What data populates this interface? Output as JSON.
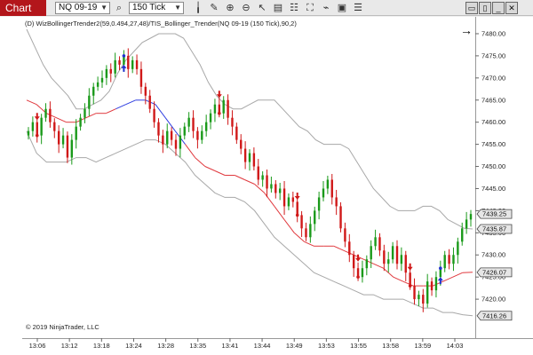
{
  "toolbar": {
    "chart_tab": "Chart",
    "instrument": "NQ 09-19",
    "interval": "150 Tick",
    "icons": [
      "search-icon",
      "bar-type-icon",
      "pencil-icon",
      "zoom-in-icon",
      "zoom-out-icon",
      "pointer-icon",
      "data-box-icon",
      "template-icon",
      "properties-icon",
      "strategy-icon",
      "indicator-icon",
      "list-icon"
    ],
    "window_buttons": [
      "maximize-icon",
      "restore-icon",
      "minimize-icon",
      "close-icon"
    ]
  },
  "indicator_label": "(D) WizBollingerTrender2(59,0.494,27,48)/TIS_Bollinger_Trender(NQ 09-19 (150 Tick),90,2)",
  "copyright": "© 2019 NinjaTrader, LLC",
  "colors": {
    "upper_band": "#a8a8a8",
    "lower_band": "#a8a8a8",
    "trend_red": "#e0393e",
    "trend_blue": "#2f3fe0",
    "up_candle": "#1a9a1a",
    "down_candle": "#d01818",
    "signal_down": "#d01818",
    "signal_up": "#2030d0"
  },
  "chart_data": {
    "type": "candlestick",
    "title": "",
    "xlabel": "",
    "ylabel": "",
    "ylim": [
      7413,
      7482
    ],
    "y_ticks": [
      7420,
      7425,
      7430,
      7435,
      7440,
      7445,
      7450,
      7455,
      7460,
      7465,
      7470,
      7475,
      7480
    ],
    "y_tick_labels": [
      "7420.00",
      "7425.00",
      "7430.00",
      "7435.00",
      "7440.00",
      "7445.00",
      "7450.00",
      "7455.00",
      "7460.00",
      "7465.00",
      "7470.00",
      "7475.00",
      "7480.00"
    ],
    "x_tick_labels": [
      "13:06",
      "13:12",
      "13:18",
      "13:24",
      "13:28",
      "13:35",
      "13:41",
      "13:44",
      "13:49",
      "13:53",
      "13:55",
      "13:58",
      "13:59",
      "14:03"
    ],
    "price_tags": [
      {
        "label": "7439.25",
        "value": 7439.25
      },
      {
        "label": "7435.87",
        "value": 7435.87
      },
      {
        "label": "7426.07",
        "value": 7426.07
      },
      {
        "label": "7416.26",
        "value": 7416.26
      }
    ],
    "close": [
      7458,
      7460,
      7457,
      7461,
      7463,
      7460,
      7458,
      7455,
      7457,
      7452,
      7456,
      7459,
      7461,
      7463,
      7466,
      7468,
      7469,
      7470,
      7472,
      7471,
      7474,
      7473,
      7475,
      7472,
      7474,
      7472,
      7468,
      7466,
      7463,
      7460,
      7457,
      7455,
      7458,
      7456,
      7454,
      7457,
      7459,
      7461,
      7458,
      7456,
      7458,
      7460,
      7462,
      7464,
      7462,
      7465,
      7461,
      7459,
      7456,
      7454,
      7451,
      7453,
      7450,
      7447,
      7448,
      7445,
      7446,
      7444,
      7445,
      7441,
      7443,
      7442,
      7439,
      7436,
      7434,
      7437,
      7440,
      7443,
      7445,
      7447,
      7443,
      7441,
      7436,
      7433,
      7430,
      7427,
      7425,
      7427,
      7429,
      7432,
      7434,
      7431,
      7428,
      7429,
      7432,
      7428,
      7430,
      7426,
      7423,
      7420,
      7421,
      7419,
      7424,
      7422,
      7425,
      7427,
      7430,
      7428,
      7430,
      7433,
      7436,
      7438,
      7439.25
    ],
    "upper_band": [
      7481,
      7477,
      7473,
      7470,
      7468,
      7466,
      7463,
      7463,
      7464,
      7465,
      7467,
      7471,
      7474,
      7476,
      7478,
      7479,
      7480,
      7480,
      7480,
      7479,
      7476,
      7473,
      7469,
      7466,
      7464,
      7463,
      7463,
      7464,
      7465,
      7465,
      7465,
      7463,
      7461,
      7459,
      7458,
      7456,
      7455,
      7455,
      7455,
      7454,
      7451,
      7448,
      7445,
      7443,
      7441,
      7440,
      7440,
      7440,
      7441,
      7441,
      7440,
      7438,
      7437,
      7436,
      7435.87
    ],
    "lower_band": [
      7458,
      7453,
      7451,
      7451,
      7451,
      7452,
      7452,
      7451,
      7452,
      7453,
      7454,
      7455,
      7456,
      7456,
      7455,
      7453,
      7451,
      7448,
      7446,
      7444,
      7443,
      7443,
      7442,
      7440,
      7437,
      7434,
      7432,
      7430,
      7428,
      7426,
      7425,
      7424,
      7423,
      7422,
      7421,
      7421,
      7420,
      7420,
      7420,
      7419,
      7418,
      7418,
      7417,
      7417,
      7416.5,
      7416.26
    ],
    "trend_line": [
      7465,
      7464,
      7462,
      7461,
      7460,
      7460,
      7461,
      7462,
      7462,
      7463,
      7464,
      7465,
      7465,
      7464,
      7461,
      7458,
      7455,
      7452,
      7450,
      7449,
      7448,
      7448,
      7447,
      7446,
      7444,
      7441,
      7438,
      7435,
      7433,
      7432,
      7432,
      7432,
      7431,
      7430,
      7429,
      7428,
      7427,
      7425,
      7424,
      7423,
      7423,
      7423,
      7424,
      7425,
      7426,
      7426.07
    ],
    "trend_blue_range": [
      9,
      16
    ],
    "down_signals": [
      2,
      44,
      62,
      76,
      88
    ],
    "up_signals": [
      22,
      95
    ]
  }
}
